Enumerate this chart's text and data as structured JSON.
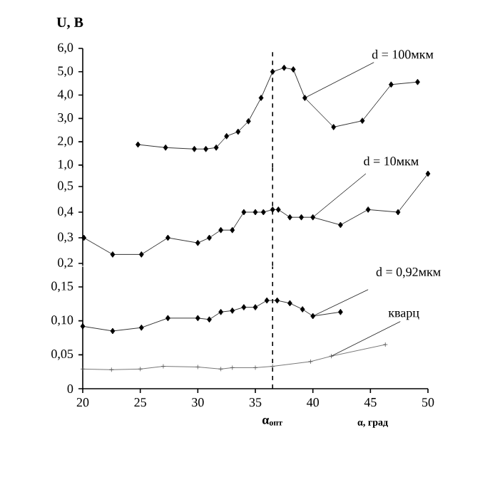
{
  "chart_data": [
    {
      "type": "line",
      "ylabel": "U, В",
      "xlim": [
        20,
        50
      ],
      "ylim": [
        0.9,
        6
      ],
      "yticks": [
        {
          "value": 1,
          "label": "1,0"
        },
        {
          "value": 2,
          "label": "2,0"
        },
        {
          "value": 3,
          "label": "3,0"
        },
        {
          "value": 4,
          "label": "4,0"
        },
        {
          "value": 5,
          "label": "5,0"
        },
        {
          "value": 6,
          "label": "6,0"
        }
      ],
      "tick_labels": "y",
      "ref_lines": [
        {
          "axis": "x",
          "value": 36.5,
          "line_style": "dashed",
          "color": "#000000"
        }
      ],
      "series": [
        {
          "name": "d = 100мкм",
          "color": "#000000",
          "marker": "diamond",
          "x": [
            24.8,
            27.2,
            29.7,
            30.7,
            31.6,
            32.5,
            33.5,
            34.4,
            35.5,
            36.5,
            37.5,
            38.3,
            39.3,
            41.8,
            44.3,
            46.8,
            49.1
          ],
          "values": [
            1.88,
            1.75,
            1.69,
            1.69,
            1.75,
            2.24,
            2.43,
            2.88,
            3.88,
            5.0,
            5.17,
            5.1,
            3.88,
            2.63,
            2.9,
            4.45,
            4.56
          ]
        }
      ]
    },
    {
      "type": "line",
      "xlim": [
        20,
        50
      ],
      "ylim": [
        0.19,
        0.58
      ],
      "yticks": [
        {
          "value": 0.2,
          "label": "0,2"
        },
        {
          "value": 0.3,
          "label": "0,3"
        },
        {
          "value": 0.4,
          "label": "0,4"
        },
        {
          "value": 0.5,
          "label": "0,5"
        }
      ],
      "tick_labels": "y",
      "ref_lines": [
        {
          "axis": "x",
          "value": 36.5,
          "line_style": "dashed",
          "color": "#000000"
        }
      ],
      "series": [
        {
          "name": "d = 10мкм",
          "color": "#000000",
          "marker": "diamond",
          "x": [
            20.1,
            22.6,
            25.1,
            27.4,
            30.0,
            31.0,
            32.0,
            33.0,
            34.0,
            35.0,
            35.7,
            36.5,
            37.0,
            38.0,
            39.0,
            40.0,
            42.4,
            44.8,
            47.4,
            50.0
          ],
          "values": [
            0.3,
            0.235,
            0.235,
            0.3,
            0.28,
            0.3,
            0.33,
            0.33,
            0.4,
            0.4,
            0.4,
            0.41,
            0.41,
            0.38,
            0.38,
            0.38,
            0.35,
            0.41,
            0.4,
            0.55
          ]
        }
      ]
    },
    {
      "type": "line",
      "xlabel": "α, град",
      "xlim": [
        20,
        50
      ],
      "xticks": [
        20,
        25,
        30,
        35,
        40,
        45,
        50
      ],
      "ylim": [
        0,
        0.18
      ],
      "yticks": [
        0,
        {
          "value": 0.05,
          "label": "0,05"
        },
        {
          "value": 0.1,
          "label": "0,10"
        },
        {
          "value": 0.15,
          "label": "0,15"
        }
      ],
      "ref_lines": [
        {
          "axis": "x",
          "value": 36.5,
          "label": "α$_{опт}$",
          "line_style": "dashed",
          "color": "#000000"
        }
      ],
      "series": [
        {
          "name": "d = 0,92мкм",
          "color": "#000000",
          "marker": "diamond",
          "x": [
            20.0,
            22.6,
            25.1,
            27.4,
            30.0,
            31.0,
            32.0,
            33.0,
            34.0,
            35.0,
            36.0,
            36.9,
            38.0,
            39.1,
            40.0,
            42.4
          ],
          "values": [
            0.092,
            0.085,
            0.09,
            0.104,
            0.104,
            0.102,
            0.113,
            0.115,
            0.12,
            0.12,
            0.13,
            0.13,
            0.126,
            0.117,
            0.107,
            0.113
          ]
        },
        {
          "name": "кварц",
          "color": "#555555",
          "marker": "cross",
          "x": [
            20.0,
            22.5,
            25.0,
            27.0,
            30.0,
            32.0,
            33.0,
            35.0,
            36.5,
            39.8,
            41.6,
            46.3
          ],
          "values": [
            0.029,
            0.028,
            0.029,
            0.033,
            0.032,
            0.029,
            0.031,
            0.031,
            0.033,
            0.04,
            0.048,
            0.065
          ]
        }
      ]
    }
  ]
}
